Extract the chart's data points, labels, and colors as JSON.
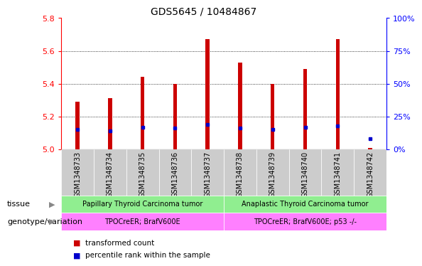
{
  "title": "GDS5645 / 10484867",
  "samples": [
    "GSM1348733",
    "GSM1348734",
    "GSM1348735",
    "GSM1348736",
    "GSM1348737",
    "GSM1348738",
    "GSM1348739",
    "GSM1348740",
    "GSM1348741",
    "GSM1348742"
  ],
  "transformed_count": [
    5.29,
    5.31,
    5.44,
    5.4,
    5.67,
    5.53,
    5.4,
    5.49,
    5.67,
    5.01
  ],
  "percentile_rank": [
    15,
    14,
    17,
    16,
    19,
    16,
    15,
    17,
    18,
    8
  ],
  "ylim_left": [
    5.0,
    5.8
  ],
  "ylim_right": [
    0,
    100
  ],
  "yticks_left": [
    5.0,
    5.2,
    5.4,
    5.6,
    5.8
  ],
  "yticks_right": [
    0,
    25,
    50,
    75,
    100
  ],
  "ytick_labels_right": [
    "0%",
    "25%",
    "50%",
    "75%",
    "100%"
  ],
  "bar_color": "#cc0000",
  "dot_color": "#0000cc",
  "tissue_group1": "Papillary Thyroid Carcinoma tumor",
  "tissue_group2": "Anaplastic Thyroid Carcinoma tumor",
  "tissue_color": "#90ee90",
  "genotype_group1": "TPOCreER; BrafV600E",
  "genotype_group2": "TPOCreER; BrafV600E; p53 -/-",
  "genotype_color": "#ff80ff",
  "group1_count": 5,
  "group2_count": 5,
  "legend_red": "transformed count",
  "legend_blue": "percentile rank within the sample",
  "tissue_label": "tissue",
  "genotype_label": "genotype/variation",
  "xlabel_bg": "#cccccc",
  "bar_width": 0.12
}
